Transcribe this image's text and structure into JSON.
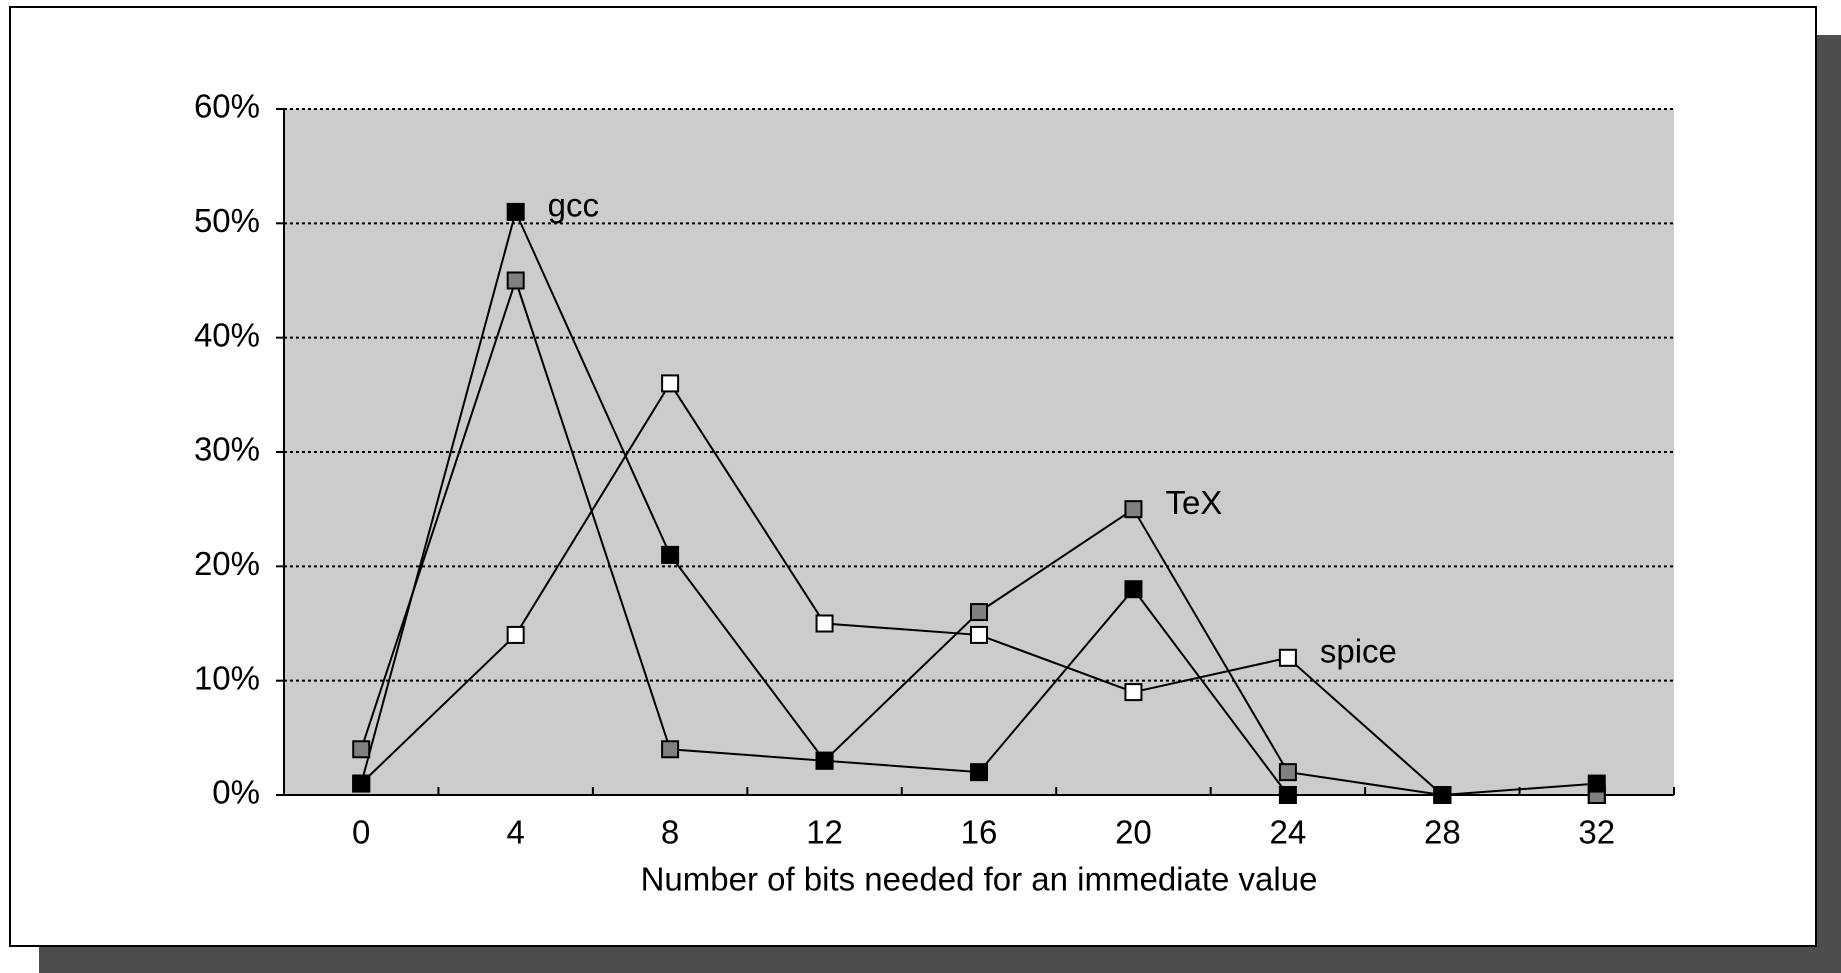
{
  "chart_data": {
    "type": "line",
    "x_label": "Number of bits needed for an immediate value",
    "categories": [
      "0",
      "4",
      "8",
      "12",
      "16",
      "20",
      "24",
      "28",
      "32"
    ],
    "series": [
      {
        "name": "spice",
        "color": "#ffffff",
        "values": [
          1,
          14,
          36,
          15,
          14,
          9,
          12,
          0,
          0
        ]
      },
      {
        "name": "TeX",
        "color": "#808080",
        "values": [
          4,
          45,
          4,
          3,
          16,
          25,
          2,
          0,
          0
        ]
      },
      {
        "name": "gcc",
        "color": "#000000",
        "values": [
          1,
          51,
          21,
          3,
          2,
          18,
          0,
          0,
          1
        ]
      }
    ],
    "ylim": [
      0,
      60
    ],
    "yticks": [
      {
        "value": 0,
        "label": "0%"
      },
      {
        "value": 10,
        "label": "10%"
      },
      {
        "value": 20,
        "label": "20%"
      },
      {
        "value": 30,
        "label": "30%"
      },
      {
        "value": 40,
        "label": "40%"
      },
      {
        "value": 50,
        "label": "50%"
      },
      {
        "value": 60,
        "label": "60%"
      }
    ],
    "grid": true
  }
}
